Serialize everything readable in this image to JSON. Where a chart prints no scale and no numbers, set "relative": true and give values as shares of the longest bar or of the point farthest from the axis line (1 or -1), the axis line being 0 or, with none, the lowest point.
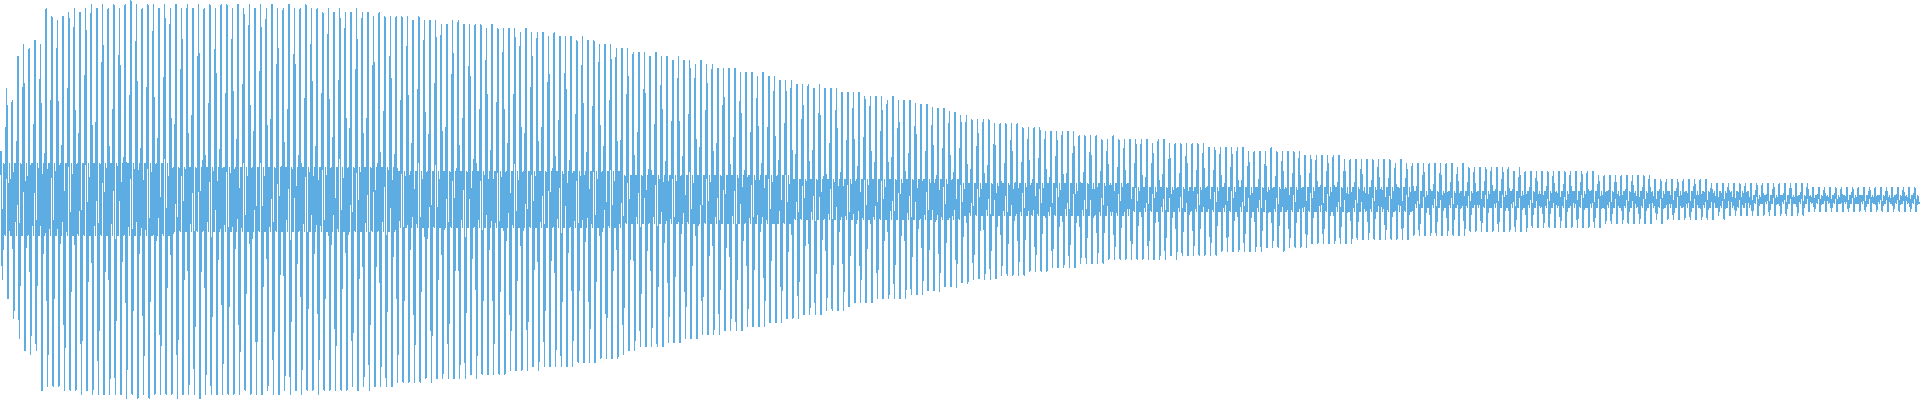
{
  "chart_data": {
    "type": "line",
    "relative": true,
    "tick_labels": false,
    "color": "#5dade2",
    "categories": [
      null,
      null,
      null,
      null,
      null,
      null,
      null,
      null,
      null,
      null,
      null,
      null,
      null,
      null,
      null,
      null,
      null,
      null,
      null,
      null,
      null,
      null,
      null,
      null,
      null,
      null,
      null,
      null,
      null,
      null,
      null,
      null,
      null,
      null,
      null,
      null,
      null,
      null,
      null,
      null,
      null,
      null,
      null,
      null,
      null,
      null,
      null,
      null,
      null,
      null,
      null,
      null,
      null,
      null,
      null,
      null,
      null,
      null,
      null,
      null,
      null,
      null,
      null,
      null,
      null,
      null,
      null,
      null,
      null,
      null,
      null,
      null,
      null,
      null,
      null,
      null,
      null,
      null,
      null,
      null,
      null,
      null,
      null,
      null,
      null,
      null,
      null,
      null,
      null,
      null,
      null,
      null,
      null,
      null,
      null,
      null,
      null,
      null,
      null,
      null,
      null,
      null,
      null,
      null,
      null,
      null,
      null,
      null,
      null,
      null,
      null,
      null,
      null,
      null,
      null,
      null,
      null,
      null,
      null,
      null,
      null,
      null,
      null,
      null,
      null,
      null,
      null,
      null,
      null,
      null,
      null,
      null,
      null,
      null,
      null,
      null,
      null,
      null,
      null,
      null,
      null,
      null,
      null,
      null,
      null,
      null,
      null,
      null,
      null,
      null,
      null,
      null,
      null,
      null,
      null,
      null,
      null,
      null,
      null,
      null,
      null,
      null,
      null,
      null,
      null,
      null,
      null,
      null,
      null,
      null,
      null,
      null,
      null,
      null,
      null,
      null,
      null,
      null,
      null,
      null,
      null,
      null,
      null,
      null,
      null,
      null,
      null,
      null,
      null,
      null,
      null,
      null,
      null,
      null,
      null,
      null,
      null,
      null,
      null,
      null,
      null,
      null,
      null,
      null,
      null,
      null,
      null,
      null,
      null,
      null,
      null,
      null,
      null,
      null,
      null,
      null,
      null,
      null,
      null,
      null,
      null,
      null,
      null,
      null,
      null,
      null,
      null,
      null,
      null,
      null,
      null,
      null,
      null,
      null,
      null,
      null,
      null,
      null,
      null,
      null,
      null,
      null,
      null,
      null,
      null,
      null,
      null,
      null,
      null,
      null,
      null,
      null,
      null,
      null,
      null,
      null,
      null,
      null,
      null,
      null,
      null,
      null,
      null,
      null,
      null,
      null,
      null,
      null,
      null,
      null,
      null,
      null,
      null,
      null,
      null,
      null,
      null,
      null,
      null,
      null,
      null,
      null,
      null,
      null,
      null,
      null,
      null,
      null,
      null,
      null,
      null,
      null,
      null,
      null,
      null,
      null,
      null,
      null,
      null,
      null,
      null,
      null,
      null,
      null,
      null,
      null,
      null,
      null,
      null,
      null,
      null,
      null,
      null,
      null,
      null,
      null,
      null,
      null,
      null,
      null,
      null,
      null,
      null,
      null,
      null,
      null,
      null,
      null,
      null,
      null,
      null,
      null,
      null,
      null,
      null,
      null,
      null,
      null,
      null,
      null,
      null,
      null,
      null,
      null,
      null,
      null,
      null,
      null,
      null,
      null,
      null,
      null,
      null,
      null,
      null,
      null,
      null,
      null,
      null,
      null,
      null,
      null,
      null,
      null,
      null,
      null,
      null,
      null,
      null,
      null,
      null,
      null,
      null,
      null,
      null,
      null,
      null,
      null,
      null,
      null,
      null,
      null,
      null,
      null,
      null,
      null,
      null,
      null,
      null,
      null,
      null,
      null,
      null,
      null,
      null,
      null,
      null,
      null,
      null,
      null,
      null,
      null,
      null,
      null,
      null,
      null,
      null,
      null,
      null,
      null,
      null,
      null,
      null,
      null,
      null,
      null,
      null,
      null,
      null,
      null,
      null,
      null,
      null,
      null,
      null,
      null,
      null,
      null,
      null,
      null,
      null,
      null,
      null,
      null,
      null,
      null,
      null,
      null,
      null,
      null,
      null,
      null,
      null,
      null,
      null,
      null,
      null,
      null,
      null,
      null,
      null,
      null,
      null,
      null,
      null,
      null,
      null,
      null,
      null,
      null,
      null,
      null,
      null,
      null,
      null,
      null,
      null,
      null,
      null,
      null,
      null,
      null,
      null,
      null,
      null,
      null,
      null,
      null,
      null,
      null,
      null,
      null,
      null,
      null,
      null,
      null,
      null,
      null,
      null,
      null,
      null,
      null,
      null,
      null,
      null,
      null,
      null,
      null,
      null,
      null,
      null,
      null,
      null,
      null,
      null,
      null,
      null,
      null,
      null,
      null,
      null,
      null,
      null,
      null,
      null,
      null,
      null,
      null,
      null,
      null,
      null,
      null,
      null,
      null,
      null,
      null,
      null,
      null,
      null,
      null,
      null,
      null,
      null,
      null,
      null,
      null,
      null,
      null,
      null,
      null,
      null,
      null,
      null,
      null,
      null,
      null,
      null,
      null,
      null,
      null,
      null,
      null,
      null,
      null,
      null,
      null,
      null,
      null,
      null,
      null,
      null,
      null,
      null,
      null,
      null,
      null,
      null,
      null,
      null,
      null,
      null,
      null,
      null,
      null,
      null,
      null,
      null,
      null,
      null,
      null,
      null,
      null,
      null,
      null,
      null,
      null,
      null,
      null,
      null,
      null,
      null,
      null,
      null,
      null,
      null,
      null,
      null,
      null,
      null,
      null,
      null,
      null,
      null,
      null,
      null,
      null,
      null,
      null,
      null,
      null,
      null,
      null,
      null,
      null,
      null,
      null,
      null,
      null,
      null,
      null,
      null,
      null,
      null,
      null,
      null,
      null,
      null,
      null,
      null,
      null,
      null,
      null,
      null,
      null,
      null,
      null,
      null,
      null,
      null,
      null,
      null,
      null,
      null,
      null,
      null,
      null,
      null,
      null,
      null,
      null,
      null,
      null,
      null,
      null,
      null,
      null,
      null,
      null,
      null,
      null,
      null,
      null,
      null,
      null,
      null,
      null,
      null,
      null,
      null,
      null,
      null,
      null,
      null,
      null,
      null,
      null,
      null,
      null,
      null,
      null,
      null,
      null,
      null,
      null,
      null,
      null,
      null,
      null,
      null,
      null,
      null,
      null,
      null,
      null,
      null,
      null,
      null,
      null,
      null,
      null,
      null,
      null,
      null,
      null,
      null,
      null,
      null,
      null,
      null,
      null,
      null,
      null,
      null,
      null,
      null,
      null,
      null,
      null,
      null,
      null,
      null,
      null,
      null,
      null,
      null,
      null,
      null,
      null,
      null,
      null,
      null,
      null,
      null,
      null,
      null,
      null,
      null,
      null,
      null,
      null,
      null,
      null,
      null,
      null,
      null,
      null,
      null,
      null,
      null,
      null,
      null,
      null,
      null,
      null,
      null,
      null,
      null,
      null,
      null,
      null,
      null,
      null,
      null,
      null,
      null,
      null,
      null,
      null,
      null,
      null,
      null,
      null,
      null,
      null,
      null,
      null,
      null,
      null,
      null,
      null,
      null,
      null,
      null,
      null,
      null,
      null,
      null,
      null,
      null,
      null,
      null,
      null,
      null,
      null,
      null,
      null,
      null,
      null,
      null,
      null,
      null,
      null,
      null,
      null,
      null,
      null,
      null,
      null,
      null,
      null,
      null,
      null,
      null,
      null,
      null,
      null,
      null,
      null,
      null,
      null,
      null,
      null,
      null,
      null,
      null,
      null,
      null,
      null,
      null,
      null,
      null,
      null,
      null,
      null,
      null,
      null,
      null,
      null,
      null,
      null,
      null,
      null,
      null,
      null,
      null,
      null,
      null,
      null,
      null,
      null,
      null,
      null,
      null,
      null,
      null,
      null,
      null,
      null,
      null,
      null,
      null,
      null,
      null,
      null,
      null,
      null,
      null,
      null,
      null,
      null,
      null,
      null,
      null,
      null,
      null,
      null,
      null,
      null,
      null,
      null,
      null,
      null,
      null,
      null,
      null,
      null,
      null,
      null,
      null,
      null,
      null,
      null,
      null,
      null,
      null,
      null,
      null,
      null,
      null,
      null,
      null,
      null,
      null,
      null,
      null,
      null,
      null,
      null,
      null,
      null,
      null,
      null,
      null,
      null,
      null,
      null,
      null,
      null,
      null,
      null,
      null,
      null,
      null,
      null,
      null,
      null,
      null,
      null,
      null,
      null,
      null,
      null,
      null,
      null,
      null,
      null,
      null,
      null,
      null,
      null,
      null,
      null,
      null,
      null,
      null,
      null,
      null,
      null,
      null,
      null,
      null,
      null,
      null,
      null,
      null,
      null,
      null,
      null,
      null,
      null,
      null,
      null,
      null,
      null,
      null,
      null,
      null,
      null,
      null,
      null,
      null,
      null,
      null,
      null,
      null,
      null,
      null,
      null,
      null,
      null,
      null,
      null,
      null,
      null,
      null,
      null,
      null,
      null,
      null,
      null,
      null,
      null,
      null,
      null,
      null,
      null,
      null,
      null,
      null,
      null,
      null,
      null,
      null,
      null,
      null,
      null,
      null,
      null,
      null,
      null,
      null,
      null,
      null,
      null,
      null,
      null,
      null,
      null,
      null,
      null,
      null,
      null,
      null,
      null,
      null,
      null,
      null,
      null,
      null,
      null,
      null,
      null,
      null,
      null,
      null,
      null,
      null,
      null,
      null,
      null,
      null,
      null,
      null,
      null,
      null,
      null,
      null,
      null,
      null,
      null,
      null,
      null,
      null,
      null,
      null,
      null,
      null,
      null,
      null,
      null,
      null,
      null,
      null,
      null,
      null,
      null,
      null,
      null,
      null,
      null,
      null,
      null,
      null,
      null,
      null,
      null,
      null,
      null,
      null,
      null,
      null,
      null,
      null,
      null,
      null,
      null,
      null,
      null,
      null,
      null,
      null,
      null,
      null,
      null,
      null,
      null,
      null,
      null,
      null,
      null,
      null,
      null,
      null,
      null,
      null,
      null,
      null,
      null,
      null,
      null,
      null,
      null,
      null,
      null,
      null,
      null,
      null,
      null,
      null,
      null,
      null,
      null,
      null,
      null,
      null,
      null,
      null,
      null,
      null,
      null,
      null,
      null,
      null,
      null,
      null,
      null,
      null,
      null,
      null,
      null,
      null,
      null,
      null,
      null,
      null,
      null,
      null,
      null,
      null,
      null,
      null,
      null,
      null,
      null,
      null,
      null,
      null,
      null,
      null,
      null,
      null,
      null,
      null,
      null,
      null,
      null,
      null,
      null,
      null,
      null,
      null,
      null,
      null,
      null,
      null,
      null,
      null,
      null,
      null,
      null,
      null,
      null,
      null,
      null,
      null,
      null,
      null,
      null,
      null,
      null,
      null,
      null,
      null,
      null,
      null,
      null,
      null,
      null,
      null,
      null,
      null,
      null,
      null,
      null,
      null,
      null,
      null,
      null,
      null,
      null,
      null,
      null,
      null,
      null,
      null,
      null,
      null,
      null,
      null,
      null,
      null,
      null,
      null,
      null,
      null,
      null,
      null,
      null,
      null,
      null,
      null,
      null,
      null,
      null,
      null,
      null,
      null,
      null,
      null,
      null,
      null,
      null,
      null,
      null,
      null,
      null,
      null,
      null,
      null,
      null,
      null,
      null,
      null,
      null,
      null,
      null,
      null,
      null,
      null,
      null,
      null,
      null,
      null,
      null,
      null,
      null,
      null,
      null,
      null,
      null,
      null,
      null,
      null,
      null,
      null,
      null,
      null,
      null,
      null,
      null,
      null,
      null,
      null,
      null,
      null,
      null,
      null,
      null,
      null,
      null,
      null,
      null,
      null,
      null,
      null,
      null,
      null,
      null,
      null,
      null,
      null,
      null,
      null,
      null,
      null,
      null,
      null,
      null,
      null,
      null,
      null,
      null,
      null,
      null,
      null,
      null,
      null,
      null,
      null,
      null,
      null,
      null,
      null,
      null,
      null,
      null,
      null,
      null,
      null,
      null,
      null,
      null,
      null,
      null,
      null,
      null,
      null,
      null,
      null,
      null,
      null,
      null,
      null,
      null,
      null,
      null,
      null,
      null,
      null,
      null,
      null,
      null,
      null,
      null,
      null,
      null,
      null,
      null,
      null,
      null
    ],
    "values": [
      0.62,
      0.3,
      0.59,
      0.41,
      0.78,
      0.25,
      0.59,
      0.41,
      0.75,
      0.2,
      0.59,
      0.41,
      0.86,
      0.15,
      0.59,
      0.41,
      0.89,
      0.12,
      0.59,
      0.41,
      0.88,
      0.11,
      0.59,
      0.41,
      0.9,
      0.12,
      0.59,
      0.41,
      0.89,
      0.02,
      0.59,
      0.41,
      0.98,
      0.03,
      0.59,
      0.41,
      0.96,
      0.03,
      0.59,
      0.41,
      0.95,
      0.03,
      0.59,
      0.41,
      0.96,
      0.02,
      0.59,
      0.41,
      0.97,
      0.02,
      0.59,
      0.41,
      0.98,
      0.02,
      0.59,
      0.41,
      0.97,
      0.01,
      0.59,
      0.41,
      0.98,
      0.02,
      0.59,
      0.41,
      0.99,
      0.01,
      0.59,
      0.41,
      0.98,
      0.01,
      0.59,
      0.41,
      0.99,
      0.01,
      0.59,
      0.41,
      0.98,
      0.01,
      0.59,
      0.41,
      0.99,
      0.01,
      0.59,
      0.41,
      0.98,
      0.01,
      0.59,
      0.41,
      0.99,
      0.0,
      0.59,
      0.41,
      1.0,
      0.01,
      0.59,
      0.41,
      0.99,
      0.0,
      0.59,
      0.41,
      0.98,
      0.01,
      0.59,
      0.41,
      0.99,
      0.0,
      0.59,
      0.41,
      0.99,
      0.01,
      0.59,
      0.41,
      0.98,
      0.01,
      0.59,
      0.41,
      0.99,
      0.01,
      0.59,
      0.41,
      0.98,
      0.01,
      0.58,
      0.42,
      0.99,
      0.0,
      0.58,
      0.42,
      0.98,
      0.01,
      0.58,
      0.42,
      0.99,
      0.01,
      0.58,
      0.42,
      0.98,
      0.01,
      0.58,
      0.42,
      0.99,
      0.0,
      0.58,
      0.42,
      0.98,
      0.01,
      0.58,
      0.42,
      0.99,
      0.01,
      0.58,
      0.42,
      0.98,
      0.01,
      0.58,
      0.42,
      0.99,
      0.01,
      0.58,
      0.42,
      0.99,
      0.01,
      0.58,
      0.42,
      0.98,
      0.01,
      0.58,
      0.42,
      0.99,
      0.01,
      0.58,
      0.42,
      0.98,
      0.02,
      0.58,
      0.42,
      0.99,
      0.01,
      0.58,
      0.42,
      0.98,
      0.01,
      0.58,
      0.42,
      0.99,
      0.01,
      0.58,
      0.42,
      0.98,
      0.02,
      0.58,
      0.42,
      0.99,
      0.01,
      0.58,
      0.42,
      0.98,
      0.01,
      0.58,
      0.42,
      0.98,
      0.02,
      0.58,
      0.42,
      0.99,
      0.01,
      0.58,
      0.42,
      0.98,
      0.02,
      0.58,
      0.42,
      0.98,
      0.01,
      0.58,
      0.42,
      0.99,
      0.02,
      0.58,
      0.42,
      0.98,
      0.02,
      0.58,
      0.42,
      0.98,
      0.01,
      0.58,
      0.42,
      0.97,
      0.02,
      0.58,
      0.42,
      0.98,
      0.02,
      0.58,
      0.42,
      0.97,
      0.02,
      0.58,
      0.42,
      0.98,
      0.02,
      0.58,
      0.42,
      0.97,
      0.02,
      0.58,
      0.42,
      0.97,
      0.03,
      0.58,
      0.42,
      0.98,
      0.02,
      0.58,
      0.42,
      0.97,
      0.03,
      0.58,
      0.42,
      0.97,
      0.02,
      0.58,
      0.42,
      0.96,
      0.03,
      0.58,
      0.42,
      0.97,
      0.03,
      0.58,
      0.42,
      0.96,
      0.03,
      0.58,
      0.42,
      0.96,
      0.03,
      0.58,
      0.42,
      0.96,
      0.04,
      0.57,
      0.43,
      0.96,
      0.04,
      0.57,
      0.43,
      0.96,
      0.04,
      0.57,
      0.43,
      0.95,
      0.04,
      0.57,
      0.43,
      0.96,
      0.04,
      0.57,
      0.43,
      0.95,
      0.05,
      0.57,
      0.43,
      0.95,
      0.04,
      0.57,
      0.43,
      0.95,
      0.05,
      0.57,
      0.43,
      0.94,
      0.05,
      0.57,
      0.43,
      0.94,
      0.05,
      0.57,
      0.43,
      0.95,
      0.05,
      0.57,
      0.43,
      0.95,
      0.05,
      0.57,
      0.43,
      0.94,
      0.05,
      0.57,
      0.43,
      0.94,
      0.06,
      0.57,
      0.43,
      0.94,
      0.05,
      0.57,
      0.43,
      0.94,
      0.06,
      0.57,
      0.43,
      0.93,
      0.06,
      0.57,
      0.43,
      0.94,
      0.06,
      0.57,
      0.43,
      0.93,
      0.06,
      0.57,
      0.43,
      0.93,
      0.06,
      0.57,
      0.43,
      0.93,
      0.07,
      0.57,
      0.43,
      0.93,
      0.07,
      0.57,
      0.43,
      0.92,
      0.07,
      0.57,
      0.43,
      0.93,
      0.07,
      0.57,
      0.43,
      0.92,
      0.08,
      0.57,
      0.43,
      0.92,
      0.07,
      0.57,
      0.43,
      0.92,
      0.08,
      0.57,
      0.43,
      0.91,
      0.08,
      0.57,
      0.43,
      0.92,
      0.08,
      0.57,
      0.43,
      0.91,
      0.08,
      0.57,
      0.43,
      0.91,
      0.08,
      0.57,
      0.43,
      0.91,
      0.08,
      0.57,
      0.43,
      0.9,
      0.09,
      0.57,
      0.43,
      0.91,
      0.09,
      0.57,
      0.43,
      0.9,
      0.09,
      0.57,
      0.43,
      0.9,
      0.09,
      0.57,
      0.43,
      0.89,
      0.1,
      0.57,
      0.43,
      0.89,
      0.1,
      0.57,
      0.43,
      0.89,
      0.1,
      0.57,
      0.43,
      0.88,
      0.1,
      0.57,
      0.43,
      0.88,
      0.11,
      0.56,
      0.44,
      0.88,
      0.12,
      0.56,
      0.44,
      0.87,
      0.12,
      0.56,
      0.44,
      0.87,
      0.13,
      0.56,
      0.44,
      0.87,
      0.13,
      0.56,
      0.44,
      0.86,
      0.13,
      0.56,
      0.44,
      0.87,
      0.13,
      0.56,
      0.44,
      0.86,
      0.13,
      0.56,
      0.44,
      0.86,
      0.14,
      0.56,
      0.44,
      0.85,
      0.14,
      0.56,
      0.44,
      0.86,
      0.14,
      0.56,
      0.44,
      0.85,
      0.15,
      0.56,
      0.44,
      0.85,
      0.15,
      0.56,
      0.44,
      0.84,
      0.15,
      0.56,
      0.44,
      0.85,
      0.16,
      0.56,
      0.44,
      0.84,
      0.16,
      0.56,
      0.44,
      0.84,
      0.16,
      0.56,
      0.44,
      0.83,
      0.16,
      0.56,
      0.44,
      0.83,
      0.17,
      0.56,
      0.44,
      0.83,
      0.17,
      0.56,
      0.44,
      0.83,
      0.17,
      0.56,
      0.44,
      0.82,
      0.17,
      0.56,
      0.44,
      0.82,
      0.18,
      0.56,
      0.44,
      0.82,
      0.18,
      0.56,
      0.44,
      0.81,
      0.18,
      0.56,
      0.44,
      0.82,
      0.18,
      0.56,
      0.44,
      0.81,
      0.19,
      0.56,
      0.44,
      0.81,
      0.19,
      0.56,
      0.44,
      0.8,
      0.19,
      0.56,
      0.44,
      0.8,
      0.2,
      0.56,
      0.44,
      0.8,
      0.2,
      0.55,
      0.45,
      0.79,
      0.2,
      0.55,
      0.45,
      0.79,
      0.21,
      0.55,
      0.45,
      0.79,
      0.21,
      0.55,
      0.45,
      0.78,
      0.21,
      0.55,
      0.45,
      0.79,
      0.21,
      0.55,
      0.45,
      0.78,
      0.22,
      0.55,
      0.45,
      0.78,
      0.22,
      0.55,
      0.45,
      0.78,
      0.22,
      0.55,
      0.45,
      0.77,
      0.22,
      0.55,
      0.45,
      0.77,
      0.23,
      0.55,
      0.45,
      0.77,
      0.24,
      0.55,
      0.45,
      0.77,
      0.24,
      0.55,
      0.45,
      0.76,
      0.24,
      0.55,
      0.45,
      0.76,
      0.24,
      0.55,
      0.45,
      0.76,
      0.25,
      0.55,
      0.45,
      0.76,
      0.25,
      0.55,
      0.45,
      0.75,
      0.25,
      0.55,
      0.45,
      0.76,
      0.25,
      0.55,
      0.45,
      0.75,
      0.25,
      0.55,
      0.45,
      0.75,
      0.25,
      0.55,
      0.45,
      0.75,
      0.26,
      0.55,
      0.45,
      0.74,
      0.26,
      0.55,
      0.45,
      0.74,
      0.26,
      0.55,
      0.45,
      0.74,
      0.27,
      0.55,
      0.45,
      0.73,
      0.27,
      0.55,
      0.45,
      0.73,
      0.27,
      0.55,
      0.45,
      0.73,
      0.28,
      0.55,
      0.45,
      0.72,
      0.28,
      0.55,
      0.45,
      0.72,
      0.28,
      0.55,
      0.45,
      0.71,
      0.29,
      0.54,
      0.46,
      0.71,
      0.29,
      0.54,
      0.46,
      0.7,
      0.3,
      0.54,
      0.46,
      0.7,
      0.3,
      0.54,
      0.46,
      0.7,
      0.3,
      0.54,
      0.46,
      0.7,
      0.3,
      0.54,
      0.46,
      0.69,
      0.3,
      0.54,
      0.46,
      0.69,
      0.31,
      0.54,
      0.46,
      0.69,
      0.31,
      0.54,
      0.46,
      0.69,
      0.31,
      0.54,
      0.46,
      0.69,
      0.31,
      0.54,
      0.46,
      0.68,
      0.31,
      0.54,
      0.46,
      0.68,
      0.32,
      0.54,
      0.46,
      0.68,
      0.32,
      0.54,
      0.46,
      0.68,
      0.32,
      0.54,
      0.46,
      0.67,
      0.32,
      0.54,
      0.46,
      0.67,
      0.33,
      0.54,
      0.46,
      0.67,
      0.33,
      0.54,
      0.46,
      0.67,
      0.33,
      0.54,
      0.46,
      0.67,
      0.33,
      0.54,
      0.46,
      0.67,
      0.33,
      0.54,
      0.46,
      0.66,
      0.34,
      0.54,
      0.46,
      0.66,
      0.34,
      0.54,
      0.46,
      0.66,
      0.34,
      0.54,
      0.46,
      0.66,
      0.34,
      0.54,
      0.46,
      0.65,
      0.34,
      0.54,
      0.46,
      0.65,
      0.35,
      0.54,
      0.46,
      0.66,
      0.35,
      0.54,
      0.46,
      0.65,
      0.35,
      0.54,
      0.46,
      0.65,
      0.35,
      0.54,
      0.46,
      0.65,
      0.35,
      0.53,
      0.47,
      0.65,
      0.35,
      0.53,
      0.47,
      0.65,
      0.35,
      0.53,
      0.47,
      0.65,
      0.35,
      0.53,
      0.47,
      0.64,
      0.35,
      0.53,
      0.47,
      0.65,
      0.35,
      0.53,
      0.47,
      0.65,
      0.35,
      0.53,
      0.47,
      0.64,
      0.36,
      0.53,
      0.47,
      0.64,
      0.35,
      0.53,
      0.47,
      0.64,
      0.36,
      0.53,
      0.47,
      0.64,
      0.36,
      0.53,
      0.47,
      0.64,
      0.36,
      0.53,
      0.47,
      0.64,
      0.36,
      0.53,
      0.47,
      0.64,
      0.36,
      0.53,
      0.47,
      0.63,
      0.36,
      0.53,
      0.47,
      0.63,
      0.36,
      0.53,
      0.47,
      0.63,
      0.37,
      0.53,
      0.47,
      0.63,
      0.37,
      0.53,
      0.47,
      0.63,
      0.37,
      0.53,
      0.47,
      0.63,
      0.37,
      0.53,
      0.47,
      0.63,
      0.37,
      0.53,
      0.47,
      0.62,
      0.37,
      0.53,
      0.47,
      0.62,
      0.37,
      0.53,
      0.47,
      0.62,
      0.37,
      0.53,
      0.47,
      0.62,
      0.38,
      0.53,
      0.47,
      0.63,
      0.38,
      0.53,
      0.47,
      0.62,
      0.38,
      0.53,
      0.47,
      0.62,
      0.37,
      0.53,
      0.47,
      0.62,
      0.38,
      0.53,
      0.47,
      0.62,
      0.38,
      0.53,
      0.47,
      0.62,
      0.38,
      0.53,
      0.47,
      0.61,
      0.38,
      0.53,
      0.47,
      0.61,
      0.39,
      0.53,
      0.47,
      0.61,
      0.39,
      0.53,
      0.47,
      0.61,
      0.39,
      0.53,
      0.47,
      0.61,
      0.39,
      0.53,
      0.47,
      0.61,
      0.39,
      0.53,
      0.47,
      0.61,
      0.39,
      0.53,
      0.47,
      0.6,
      0.39,
      0.53,
      0.47,
      0.6,
      0.39,
      0.53,
      0.47,
      0.6,
      0.4,
      0.53,
      0.47,
      0.6,
      0.4,
      0.53,
      0.47,
      0.6,
      0.4,
      0.53,
      0.47,
      0.6,
      0.4,
      0.53,
      0.47,
      0.6,
      0.4,
      0.53,
      0.47,
      0.6,
      0.4,
      0.53,
      0.47,
      0.6,
      0.4,
      0.53,
      0.47,
      0.59,
      0.4,
      0.53,
      0.47,
      0.6,
      0.4,
      0.53,
      0.47,
      0.59,
      0.4,
      0.53,
      0.47,
      0.59,
      0.41,
      0.52,
      0.48,
      0.59,
      0.41,
      0.52,
      0.48,
      0.59,
      0.41,
      0.52,
      0.48,
      0.59,
      0.41,
      0.52,
      0.48,
      0.59,
      0.41,
      0.52,
      0.48,
      0.59,
      0.41,
      0.52,
      0.48,
      0.59,
      0.41,
      0.52,
      0.48,
      0.59,
      0.41,
      0.52,
      0.48,
      0.58,
      0.41,
      0.52,
      0.48,
      0.59,
      0.41,
      0.52,
      0.48,
      0.58,
      0.42,
      0.52,
      0.48,
      0.58,
      0.42,
      0.52,
      0.48,
      0.58,
      0.42,
      0.52,
      0.48,
      0.58,
      0.42,
      0.52,
      0.48,
      0.58,
      0.42,
      0.52,
      0.48,
      0.58,
      0.42,
      0.52,
      0.48,
      0.58,
      0.42,
      0.52,
      0.48,
      0.58,
      0.42,
      0.52,
      0.48,
      0.57,
      0.42,
      0.52,
      0.48,
      0.58,
      0.42,
      0.52,
      0.48,
      0.57,
      0.42,
      0.52,
      0.48,
      0.57,
      0.43,
      0.52,
      0.48,
      0.57,
      0.43,
      0.52,
      0.48,
      0.57,
      0.43,
      0.52,
      0.48,
      0.57,
      0.43,
      0.52,
      0.48,
      0.57,
      0.43,
      0.52,
      0.48,
      0.57,
      0.43,
      0.52,
      0.48,
      0.57,
      0.43,
      0.52,
      0.48,
      0.57,
      0.43,
      0.52,
      0.48,
      0.57,
      0.43,
      0.52,
      0.48,
      0.57,
      0.43,
      0.52,
      0.48,
      0.57,
      0.43,
      0.52,
      0.48,
      0.57,
      0.43,
      0.52,
      0.48,
      0.56,
      0.43,
      0.52,
      0.48,
      0.56,
      0.44,
      0.52,
      0.48,
      0.56,
      0.44,
      0.52,
      0.48,
      0.56,
      0.44,
      0.52,
      0.48,
      0.56,
      0.44,
      0.52,
      0.48,
      0.56,
      0.44,
      0.52,
      0.48,
      0.56,
      0.44,
      0.52,
      0.48,
      0.56,
      0.44,
      0.52,
      0.48,
      0.56,
      0.44,
      0.52,
      0.48,
      0.56,
      0.44,
      0.52,
      0.48,
      0.55,
      0.45,
      0.52,
      0.48,
      0.55,
      0.44,
      0.52,
      0.48,
      0.55,
      0.45,
      0.52,
      0.48,
      0.55,
      0.45,
      0.52,
      0.48,
      0.55,
      0.45,
      0.52,
      0.48,
      0.55,
      0.45,
      0.52,
      0.48,
      0.55,
      0.45,
      0.52,
      0.48,
      0.55,
      0.45,
      0.52,
      0.48,
      0.55,
      0.45,
      0.52,
      0.48,
      0.55,
      0.45,
      0.52,
      0.48,
      0.54,
      0.45,
      0.52,
      0.48,
      0.54,
      0.46,
      0.52,
      0.48,
      0.54,
      0.45,
      0.52,
      0.48,
      0.54,
      0.46,
      0.52,
      0.48,
      0.54,
      0.46,
      0.52,
      0.48,
      0.54,
      0.46,
      0.52,
      0.48,
      0.54,
      0.46,
      0.52,
      0.48,
      0.54,
      0.46,
      0.51,
      0.49,
      0.54,
      0.46,
      0.51,
      0.49,
      0.54,
      0.46,
      0.51,
      0.49,
      0.54,
      0.46,
      0.51,
      0.49,
      0.54,
      0.46,
      0.51,
      0.49,
      0.54,
      0.46,
      0.51,
      0.49,
      0.54,
      0.46,
      0.51,
      0.49,
      0.54,
      0.46,
      0.51,
      0.49,
      0.54,
      0.46,
      0.51,
      0.49,
      0.54,
      0.46,
      0.51,
      0.49,
      0.54,
      0.47,
      0.51,
      0.49,
      0.53,
      0.47,
      0.51,
      0.49,
      0.53,
      0.47,
      0.51,
      0.49,
      0.53,
      0.47,
      0.51,
      0.49,
      0.53,
      0.47,
      0.51,
      0.49,
      0.53,
      0.47,
      0.51,
      0.49,
      0.53,
      0.47,
      0.51,
      0.49,
      0.53,
      0.47,
      0.51,
      0.49,
      0.53,
      0.47,
      0.51,
      0.49,
      0.53,
      0.47,
      0.51,
      0.49,
      0.53,
      0.47,
      0.51,
      0.49,
      0.53,
      0.47,
      0.51,
      0.49,
      0.53,
      0.47,
      0.51,
      0.49,
      0.53,
      0.47,
      0.51,
      0.49,
      0.53,
      0.47,
      0.51,
      0.49,
      0.53,
      0.47,
      0.51,
      0.49,
      0.53,
      0.47,
      0.51,
      0.49,
      0.53,
      0.47,
      0.51,
      0.49,
      0.53,
      0.47,
      0.51,
      0.49,
      0.53,
      0.47,
      0.51,
      0.49
    ]
  }
}
